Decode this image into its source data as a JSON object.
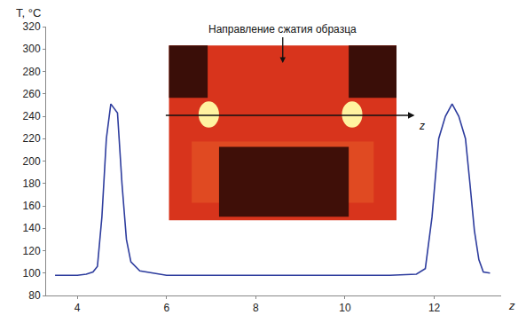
{
  "chart_data": {
    "type": "line",
    "xlabel": "z",
    "ylabel": "T, °C",
    "annotations": [
      "Направление сжатия образца",
      "z"
    ],
    "x": [
      3.5,
      4.0,
      4.2,
      4.35,
      4.45,
      4.55,
      4.65,
      4.75,
      4.9,
      5.0,
      5.1,
      5.2,
      5.4,
      6.0,
      8.0,
      10.0,
      11.0,
      11.6,
      11.8,
      11.95,
      12.1,
      12.25,
      12.4,
      12.55,
      12.7,
      12.8,
      12.9,
      13.0,
      13.1,
      13.25
    ],
    "series": [
      {
        "name": "T",
        "color": "#2e3d9e",
        "values": [
          98,
          98,
          99,
          101,
          106,
          150,
          220,
          251,
          243,
          180,
          130,
          110,
          102,
          98,
          98,
          98,
          98,
          99,
          104,
          150,
          220,
          240,
          251,
          240,
          220,
          180,
          138,
          112,
          101,
          100
        ]
      }
    ],
    "xlim": [
      3.3,
      13.5
    ],
    "xticks": [
      4,
      6,
      8,
      10,
      12
    ],
    "ylim": [
      80,
      320
    ],
    "yticks": [
      80,
      100,
      120,
      140,
      160,
      180,
      200,
      220,
      240,
      260,
      280,
      300,
      320
    ],
    "grid": false
  }
}
